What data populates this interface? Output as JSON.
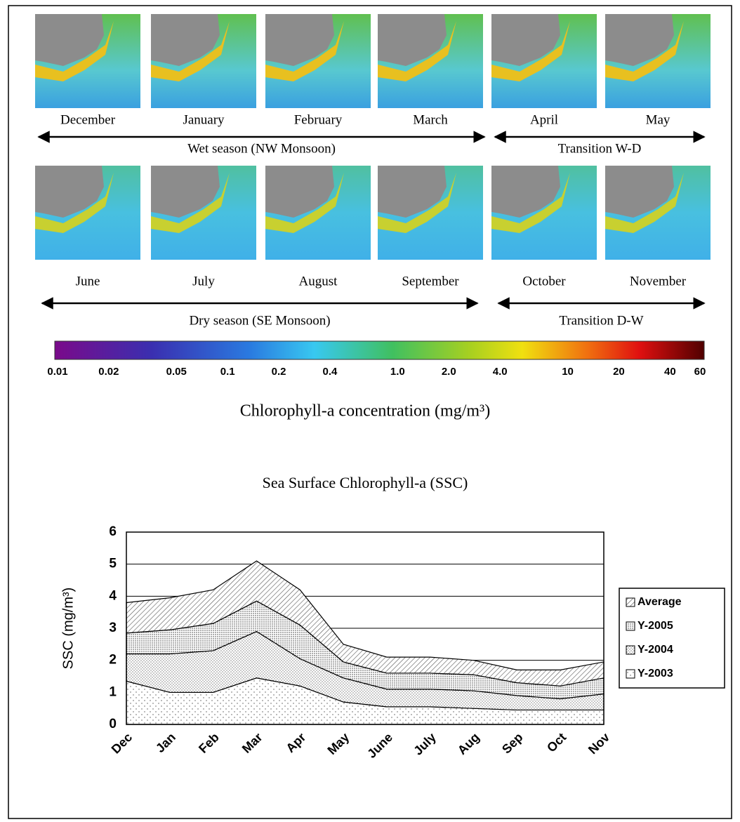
{
  "maps": {
    "months": [
      "December",
      "January",
      "February",
      "March",
      "April",
      "May",
      "June",
      "July",
      "August",
      "September",
      "October",
      "November"
    ],
    "seasons": [
      "Wet season (NW Monsoon)",
      "Transition W-D",
      "Dry season (SE Monsoon)",
      "Transition D-W"
    ]
  },
  "colorbar": {
    "log": true,
    "lim": [
      0.01,
      60
    ],
    "ticks": [
      0.01,
      0.02,
      0.05,
      0.1,
      0.2,
      0.4,
      {
        "value": 1,
        "label": "1.0"
      },
      {
        "value": 2,
        "label": "2.0"
      },
      {
        "value": 4,
        "label": "4.0"
      },
      10,
      20,
      40,
      60
    ],
    "label": "Chlorophyll-a concentration (mg/m³)"
  },
  "chart_data": {
    "type": "stacked-area",
    "title": "Sea Surface Chlorophyll-a (SSC)",
    "y_label": "SSC (mg/m³)",
    "categories": [
      "Dec",
      "Jan",
      "Feb",
      "Mar",
      "Apr",
      "May",
      "June",
      "July",
      "Aug",
      "Sep",
      "Oct",
      "Nov"
    ],
    "series": [
      {
        "name": "Y-2003",
        "values": [
          1.35,
          1.0,
          1.0,
          1.45,
          1.2,
          0.7,
          0.55,
          0.55,
          0.5,
          0.45,
          0.45,
          0.45
        ]
      },
      {
        "name": "Y-2004",
        "values": [
          0.85,
          1.2,
          1.3,
          1.45,
          0.85,
          0.75,
          0.55,
          0.55,
          0.55,
          0.45,
          0.35,
          0.5
        ]
      },
      {
        "name": "Y-2005",
        "values": [
          0.65,
          0.75,
          0.85,
          0.95,
          1.05,
          0.5,
          0.5,
          0.5,
          0.5,
          0.4,
          0.4,
          0.5
        ]
      },
      {
        "name": "Average",
        "values": [
          0.95,
          1.0,
          1.05,
          1.25,
          1.1,
          0.55,
          0.5,
          0.5,
          0.45,
          0.4,
          0.5,
          0.5
        ]
      }
    ],
    "ylim": [
      0,
      6
    ],
    "yticks": [
      0,
      1,
      2,
      3,
      4,
      5,
      6
    ],
    "grid": true,
    "legend": "right"
  }
}
